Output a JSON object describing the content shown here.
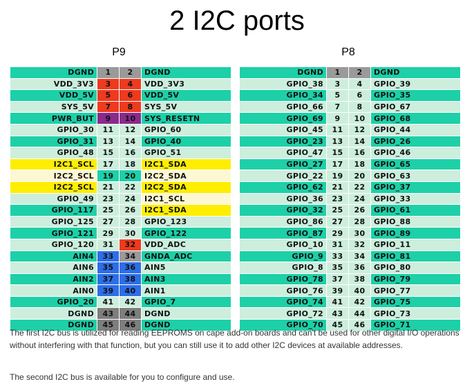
{
  "title": "2 I2C ports",
  "headers": {
    "p9": "P9",
    "p8": "P8"
  },
  "p9_rows": [
    {
      "left": "DGND",
      "ln": "1",
      "rn": "2",
      "right": "DGND",
      "ls": "teal",
      "lc": "gray",
      "rc": "gray",
      "rs": "teal"
    },
    {
      "left": "VDD_3V3",
      "ln": "3",
      "rn": "4",
      "right": "VDD_3V3",
      "ls": "light",
      "lc": "red",
      "rc": "red",
      "rs": "light"
    },
    {
      "left": "VDD_5V",
      "ln": "5",
      "rn": "6",
      "right": "VDD_5V",
      "ls": "teal",
      "lc": "red",
      "rc": "red",
      "rs": "teal"
    },
    {
      "left": "SYS_5V",
      "ln": "7",
      "rn": "8",
      "right": "SYS_5V",
      "ls": "light",
      "lc": "red",
      "rc": "red",
      "rs": "light"
    },
    {
      "left": "PWR_BUT",
      "ln": "9",
      "rn": "10",
      "right": "SYS_RESETN",
      "ls": "teal",
      "lc": "purple",
      "rc": "purple",
      "rs": "teal"
    },
    {
      "left": "GPIO_30",
      "ln": "11",
      "rn": "12",
      "right": "GPIO_60",
      "ls": "light",
      "lc": "plain",
      "rc": "plain",
      "rs": "light"
    },
    {
      "left": "GPIO_31",
      "ln": "13",
      "rn": "14",
      "right": "GPIO_40",
      "ls": "teal",
      "lc": "plain",
      "rc": "plain",
      "rs": "teal"
    },
    {
      "left": "GPIO_48",
      "ln": "15",
      "rn": "16",
      "right": "GPIO_51",
      "ls": "light",
      "lc": "plain",
      "rc": "plain",
      "rs": "light"
    },
    {
      "left": "I2C1_SCL",
      "ln": "17",
      "rn": "18",
      "right": "I2C1_SDA",
      "ls": "yellow",
      "lc": "plain",
      "rc": "plain",
      "rs": "yellow"
    },
    {
      "left": "I2C2_SCL",
      "ln": "19",
      "rn": "20",
      "right": "I2C2_SDA",
      "ls": "cream",
      "lc": "teal",
      "rc": "teal",
      "rs": "cream"
    },
    {
      "left": "I2C2_SCL",
      "ln": "21",
      "rn": "22",
      "right": "I2C2_SDA",
      "ls": "yellow",
      "lc": "plain",
      "rc": "plain",
      "rs": "yellow"
    },
    {
      "left": "GPIO_49",
      "ln": "23",
      "rn": "24",
      "right": "I2C1_SCL",
      "ls": "light",
      "lc": "plain",
      "rc": "plain",
      "rs": "cream"
    },
    {
      "left": "GPIO_117",
      "ln": "25",
      "rn": "26",
      "right": "I2C1_SDA",
      "ls": "teal",
      "lc": "plain",
      "rc": "plain",
      "rs": "yellow"
    },
    {
      "left": "GPIO_125",
      "ln": "27",
      "rn": "28",
      "right": "GPIO_123",
      "ls": "light",
      "lc": "plain",
      "rc": "plain",
      "rs": "light"
    },
    {
      "left": "GPIO_121",
      "ln": "29",
      "rn": "30",
      "right": "GPIO_122",
      "ls": "teal",
      "lc": "plain",
      "rc": "plain",
      "rs": "teal"
    },
    {
      "left": "GPIO_120",
      "ln": "31",
      "rn": "32",
      "right": "VDD_ADC",
      "ls": "light",
      "lc": "plain",
      "rc": "red",
      "rs": "light"
    },
    {
      "left": "AIN4",
      "ln": "33",
      "rn": "34",
      "right": "GNDA_ADC",
      "ls": "teal",
      "lc": "blue",
      "rc": "gray",
      "rs": "teal"
    },
    {
      "left": "AIN6",
      "ln": "35",
      "rn": "36",
      "right": "AIN5",
      "ls": "light",
      "lc": "blue",
      "rc": "blue",
      "rs": "light"
    },
    {
      "left": "AIN2",
      "ln": "37",
      "rn": "38",
      "right": "AIN3",
      "ls": "teal",
      "lc": "blue",
      "rc": "blue",
      "rs": "teal"
    },
    {
      "left": "AIN0",
      "ln": "39",
      "rn": "40",
      "right": "AIN1",
      "ls": "light",
      "lc": "blue",
      "rc": "blue",
      "rs": "light"
    },
    {
      "left": "GPIO_20",
      "ln": "41",
      "rn": "42",
      "right": "GPIO_7",
      "ls": "teal",
      "lc": "plain",
      "rc": "plain",
      "rs": "teal"
    },
    {
      "left": "DGND",
      "ln": "43",
      "rn": "44",
      "right": "DGND",
      "ls": "light",
      "lc": "dgray",
      "rc": "dgray",
      "rs": "light"
    },
    {
      "left": "DGND",
      "ln": "45",
      "rn": "46",
      "right": "DGND",
      "ls": "teal",
      "lc": "dgray",
      "rc": "dgray",
      "rs": "teal"
    }
  ],
  "p8_rows": [
    {
      "left": "DGND",
      "ln": "1",
      "rn": "2",
      "right": "DGND",
      "ls": "teal",
      "lc": "gray",
      "rc": "gray",
      "rs": "teal"
    },
    {
      "left": "GPIO_38",
      "ln": "3",
      "rn": "4",
      "right": "GPIO_39",
      "ls": "light",
      "lc": "plain",
      "rc": "plain",
      "rs": "light"
    },
    {
      "left": "GPIO_34",
      "ln": "5",
      "rn": "6",
      "right": "GPIO_35",
      "ls": "teal",
      "lc": "plain",
      "rc": "plain",
      "rs": "teal"
    },
    {
      "left": "GPIO_66",
      "ln": "7",
      "rn": "8",
      "right": "GPIO_67",
      "ls": "light",
      "lc": "plain",
      "rc": "plain",
      "rs": "light"
    },
    {
      "left": "GPIO_69",
      "ln": "9",
      "rn": "10",
      "right": "GPIO_68",
      "ls": "teal",
      "lc": "plain",
      "rc": "plain",
      "rs": "teal"
    },
    {
      "left": "GPIO_45",
      "ln": "11",
      "rn": "12",
      "right": "GPIO_44",
      "ls": "light",
      "lc": "plain",
      "rc": "plain",
      "rs": "light"
    },
    {
      "left": "GPIO_23",
      "ln": "13",
      "rn": "14",
      "right": "GPIO_26",
      "ls": "teal",
      "lc": "plain",
      "rc": "plain",
      "rs": "teal"
    },
    {
      "left": "GPIO_47",
      "ln": "15",
      "rn": "16",
      "right": "GPIO_46",
      "ls": "light",
      "lc": "plain",
      "rc": "plain",
      "rs": "light"
    },
    {
      "left": "GPIO_27",
      "ln": "17",
      "rn": "18",
      "right": "GPIO_65",
      "ls": "teal",
      "lc": "plain",
      "rc": "plain",
      "rs": "teal"
    },
    {
      "left": "GPIO_22",
      "ln": "19",
      "rn": "20",
      "right": "GPIO_63",
      "ls": "light",
      "lc": "plain",
      "rc": "plain",
      "rs": "light"
    },
    {
      "left": "GPIO_62",
      "ln": "21",
      "rn": "22",
      "right": "GPIO_37",
      "ls": "teal",
      "lc": "plain",
      "rc": "plain",
      "rs": "teal"
    },
    {
      "left": "GPIO_36",
      "ln": "23",
      "rn": "24",
      "right": "GPIO_33",
      "ls": "light",
      "lc": "plain",
      "rc": "plain",
      "rs": "light"
    },
    {
      "left": "GPIO_32",
      "ln": "25",
      "rn": "26",
      "right": "GPIO_61",
      "ls": "teal",
      "lc": "plain",
      "rc": "plain",
      "rs": "teal"
    },
    {
      "left": "GPIO_86",
      "ln": "27",
      "rn": "28",
      "right": "GPIO_88",
      "ls": "light",
      "lc": "plain",
      "rc": "plain",
      "rs": "light"
    },
    {
      "left": "GPIO_87",
      "ln": "29",
      "rn": "30",
      "right": "GPIO_89",
      "ls": "teal",
      "lc": "plain",
      "rc": "plain",
      "rs": "teal"
    },
    {
      "left": "GPIO_10",
      "ln": "31",
      "rn": "32",
      "right": "GPIO_11",
      "ls": "light",
      "lc": "plain",
      "rc": "plain",
      "rs": "light"
    },
    {
      "left": "GPIO_9",
      "ln": "33",
      "rn": "34",
      "right": "GPIO_81",
      "ls": "teal",
      "lc": "plain",
      "rc": "plain",
      "rs": "teal"
    },
    {
      "left": "GPIO_8",
      "ln": "35",
      "rn": "36",
      "right": "GPIO_80",
      "ls": "light",
      "lc": "plain",
      "rc": "plain",
      "rs": "light"
    },
    {
      "left": "GPIO_78",
      "ln": "37",
      "rn": "38",
      "right": "GPIO_79",
      "ls": "teal",
      "lc": "plain",
      "rc": "plain",
      "rs": "teal"
    },
    {
      "left": "GPIO_76",
      "ln": "39",
      "rn": "40",
      "right": "GPIO_77",
      "ls": "light",
      "lc": "plain",
      "rc": "plain",
      "rs": "light"
    },
    {
      "left": "GPIO_74",
      "ln": "41",
      "rn": "42",
      "right": "GPIO_75",
      "ls": "teal",
      "lc": "plain",
      "rc": "plain",
      "rs": "teal"
    },
    {
      "left": "GPIO_72",
      "ln": "43",
      "rn": "44",
      "right": "GPIO_73",
      "ls": "light",
      "lc": "plain",
      "rc": "plain",
      "rs": "light"
    },
    {
      "left": "GPIO_70",
      "ln": "45",
      "rn": "46",
      "right": "GPIO_71",
      "ls": "teal",
      "lc": "plain",
      "rc": "plain",
      "rs": "teal"
    }
  ],
  "notes": [
    "The first I2C bus is utilized for reading EEPROMS on cape add-on boards and can't be used for other digital I/O operations without interfering with that function, but you can still use it to add other I2C devices at available addresses.",
    "The second I2C bus is available for you to configure and use."
  ]
}
